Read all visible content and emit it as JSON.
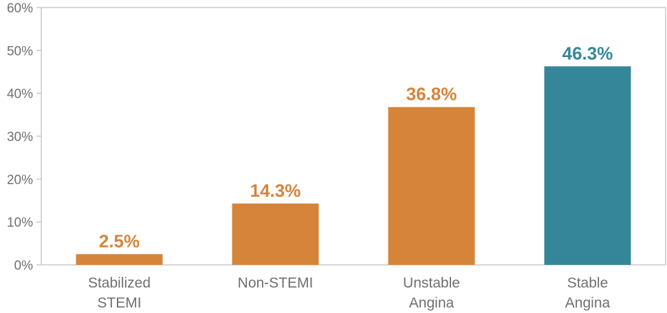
{
  "chart_data": {
    "type": "bar",
    "title": "",
    "xlabel": "",
    "ylabel": "",
    "categories": [
      [
        "Stabilized",
        "STEMI"
      ],
      [
        "Non-STEMI"
      ],
      [
        "Unstable",
        "Angina"
      ],
      [
        "Stable",
        "Angina"
      ]
    ],
    "values": [
      2.5,
      14.3,
      36.8,
      46.3
    ],
    "data_labels": [
      "2.5%",
      "14.3%",
      "36.8%",
      "46.3%"
    ],
    "colors": [
      "#d6843a",
      "#d6843a",
      "#d6843a",
      "#36869a"
    ],
    "ylim": [
      0,
      60
    ],
    "yticks": [
      0,
      10,
      20,
      30,
      40,
      50,
      60
    ],
    "ytick_labels": [
      "0%",
      "10%",
      "20%",
      "30%",
      "40%",
      "50%",
      "60%"
    ],
    "grid": false,
    "legend": "none",
    "axis_color": "#c8c8c8"
  }
}
